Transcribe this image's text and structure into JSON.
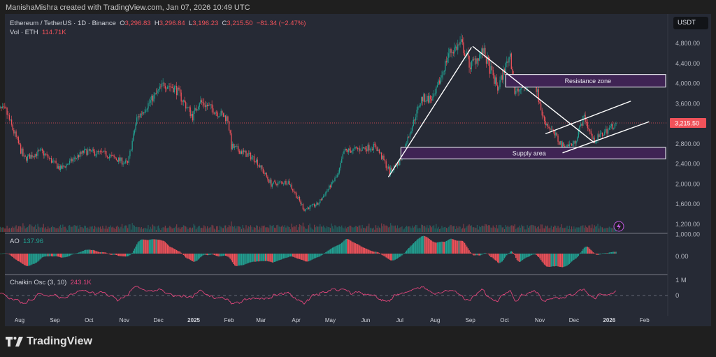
{
  "credit": "ManishaMishra created with TradingView.com, Jan 07, 2026 10:49 UTC",
  "legend": {
    "symbol": "Ethereum / TetherUS · 1D · Binance",
    "open_label": "O",
    "open": "3,296.83",
    "high_label": "H",
    "high": "3,296.84",
    "low_label": "L",
    "low": "3,196.23",
    "close_label": "C",
    "close": "3,215.50",
    "change": "−81.34 (−2.47%)",
    "vol_label": "Vol · ETH",
    "vol": "114.71K"
  },
  "currency": "USDT",
  "ao": {
    "label": "AO",
    "value": "137.96",
    "axis": [
      "0.00"
    ]
  },
  "chaikin": {
    "label": "Chaikin Osc (3, 10)",
    "value": "243.1K",
    "axis": [
      "1 M",
      "0"
    ]
  },
  "logo": {
    "text": "TradingView"
  },
  "colors": {
    "up": "#22a091",
    "down": "#f0525a",
    "chaikin": "#e0457b",
    "zone_fill": "#3f2454",
    "background": "#262a35"
  },
  "chart_data": {
    "type": "candlestick",
    "ylim": [
      1000,
      5300
    ],
    "price_ticks": [
      "4,800.00",
      "4,400.00",
      "4,000.00",
      "3,600.00",
      "2,800.00",
      "2,400.00",
      "2,000.00",
      "1,600.00",
      "1,200.00",
      "1,000.00"
    ],
    "price_tick_values": [
      4800,
      4400,
      4000,
      3600,
      2800,
      2400,
      2000,
      1600,
      1200,
      1000
    ],
    "last_price": "3,215.50",
    "last_price_value": 3215.5,
    "time_ticks": [
      {
        "label": "Aug",
        "date": "2024-08-01"
      },
      {
        "label": "Sep",
        "date": "2024-09-01"
      },
      {
        "label": "Oct",
        "date": "2024-10-01"
      },
      {
        "label": "Nov",
        "date": "2024-11-01"
      },
      {
        "label": "Dec",
        "date": "2024-12-01"
      },
      {
        "label": "2025",
        "date": "2025-01-01",
        "bold": true
      },
      {
        "label": "Feb",
        "date": "2025-02-01"
      },
      {
        "label": "Mar",
        "date": "2025-03-01"
      },
      {
        "label": "Apr",
        "date": "2025-04-01"
      },
      {
        "label": "May",
        "date": "2025-05-01"
      },
      {
        "label": "Jun",
        "date": "2025-06-01"
      },
      {
        "label": "Jul",
        "date": "2025-07-01"
      },
      {
        "label": "Aug",
        "date": "2025-08-01"
      },
      {
        "label": "Sep",
        "date": "2025-09-01"
      },
      {
        "label": "Oct",
        "date": "2025-10-01"
      },
      {
        "label": "Nov",
        "date": "2025-11-01"
      },
      {
        "label": "Dec",
        "date": "2025-12-01"
      },
      {
        "label": "2026",
        "date": "2026-01-01",
        "bold": true
      },
      {
        "label": "Feb",
        "date": "2026-02-01"
      }
    ],
    "approx_close_path": [
      [
        "2024-07-12",
        3500
      ],
      [
        "2024-07-20",
        3450
      ],
      [
        "2024-08-05",
        2500
      ],
      [
        "2024-08-20",
        2650
      ],
      [
        "2024-09-06",
        2300
      ],
      [
        "2024-09-27",
        2650
      ],
      [
        "2024-10-15",
        2600
      ],
      [
        "2024-11-04",
        2400
      ],
      [
        "2024-11-12",
        3300
      ],
      [
        "2024-12-06",
        4000
      ],
      [
        "2024-12-16",
        3900
      ],
      [
        "2024-12-31",
        3350
      ],
      [
        "2025-01-06",
        3650
      ],
      [
        "2025-01-31",
        3300
      ],
      [
        "2025-02-03",
        2750
      ],
      [
        "2025-02-24",
        2500
      ],
      [
        "2025-03-10",
        2000
      ],
      [
        "2025-03-25",
        2050
      ],
      [
        "2025-04-08",
        1500
      ],
      [
        "2025-04-20",
        1600
      ],
      [
        "2025-05-08",
        2200
      ],
      [
        "2025-05-13",
        2650
      ],
      [
        "2025-06-10",
        2750
      ],
      [
        "2025-06-22",
        2250
      ],
      [
        "2025-07-01",
        2450
      ],
      [
        "2025-07-20",
        3700
      ],
      [
        "2025-07-31",
        3700
      ],
      [
        "2025-08-13",
        4600
      ],
      [
        "2025-08-24",
        4800
      ],
      [
        "2025-09-01",
        4350
      ],
      [
        "2025-09-12",
        4650
      ],
      [
        "2025-09-25",
        3900
      ],
      [
        "2025-10-06",
        4600
      ],
      [
        "2025-10-10",
        3800
      ],
      [
        "2025-10-27",
        4100
      ],
      [
        "2025-11-04",
        3300
      ],
      [
        "2025-11-21",
        2750
      ],
      [
        "2025-12-01",
        2800
      ],
      [
        "2025-12-10",
        3350
      ],
      [
        "2025-12-18",
        2850
      ],
      [
        "2026-01-07",
        3215
      ]
    ],
    "annotations": {
      "zones": [
        {
          "label": "Resistance zone",
          "from": "2025-10-02",
          "to": "2026-03-17",
          "top": 4180,
          "bottom": 3930
        },
        {
          "label": "Supply area",
          "from": "2025-07-02",
          "to": "2026-03-12",
          "top": 2730,
          "bottom": 2500
        }
      ],
      "lines": [
        [
          [
            "2025-06-21",
            2140
          ],
          [
            "2025-09-02",
            4720
          ]
        ],
        [
          [
            "2025-09-03",
            4740
          ],
          [
            "2025-12-19",
            2820
          ]
        ],
        [
          [
            "2025-11-06",
            3000
          ],
          [
            "2026-01-20",
            3650
          ]
        ],
        [
          [
            "2025-11-21",
            2620
          ],
          [
            "2026-02-05",
            3240
          ]
        ]
      ]
    }
  }
}
